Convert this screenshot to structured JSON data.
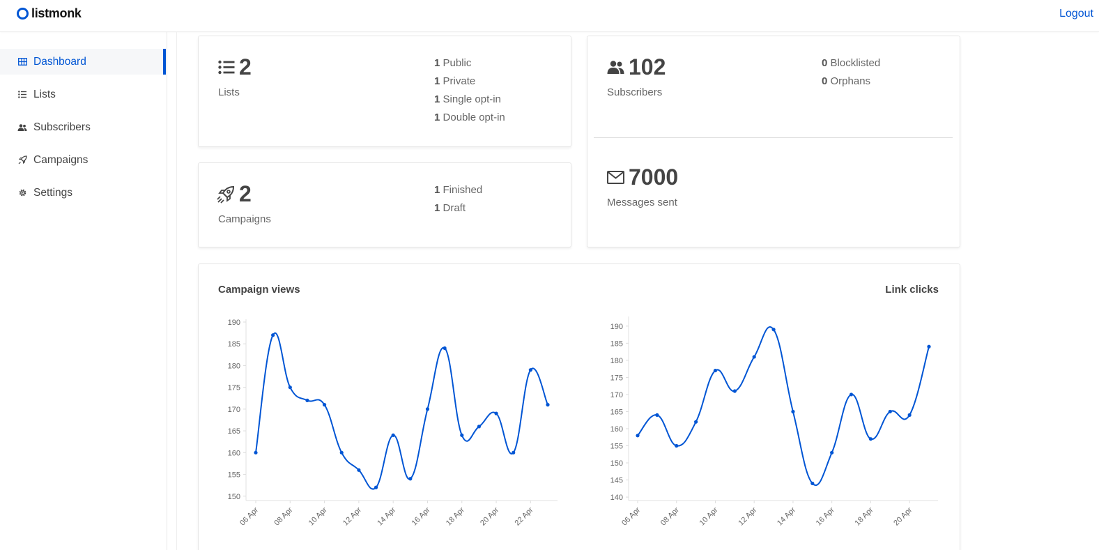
{
  "app": {
    "name": "listmonk",
    "logout_label": "Logout"
  },
  "sidebar": {
    "items": [
      {
        "label": "Dashboard",
        "icon": "dashboard-icon",
        "active": true
      },
      {
        "label": "Lists",
        "icon": "list-icon",
        "active": false
      },
      {
        "label": "Subscribers",
        "icon": "users-icon",
        "active": false
      },
      {
        "label": "Campaigns",
        "icon": "rocket-icon",
        "active": false
      },
      {
        "label": "Settings",
        "icon": "gear-icon",
        "active": false
      }
    ]
  },
  "cards": {
    "lists": {
      "count": "2",
      "label": "Lists",
      "stats": [
        {
          "value": "1",
          "label": "Public"
        },
        {
          "value": "1",
          "label": "Private"
        },
        {
          "value": "1",
          "label": "Single opt-in"
        },
        {
          "value": "1",
          "label": "Double opt-in"
        }
      ]
    },
    "campaigns": {
      "count": "2",
      "label": "Campaigns",
      "stats": [
        {
          "value": "1",
          "label": "Finished"
        },
        {
          "value": "1",
          "label": "Draft"
        }
      ]
    },
    "subscribers": {
      "count": "102",
      "label": "Subscribers",
      "stats": [
        {
          "value": "0",
          "label": "Blocklisted"
        },
        {
          "value": "0",
          "label": "Orphans"
        }
      ]
    },
    "messages": {
      "count": "7000",
      "label": "Messages sent"
    }
  },
  "colors": {
    "accent": "#0055d4",
    "line": "#0055d4"
  },
  "chart_data": [
    {
      "type": "line",
      "title": "Campaign views",
      "x": [
        "06 Apr",
        "07 Apr",
        "08 Apr",
        "09 Apr",
        "10 Apr",
        "11 Apr",
        "12 Apr",
        "13 Apr",
        "14 Apr",
        "15 Apr",
        "16 Apr",
        "17 Apr",
        "18 Apr",
        "19 Apr",
        "20 Apr",
        "21 Apr",
        "22 Apr",
        "23 Apr"
      ],
      "xticks": [
        "06 Apr",
        "08 Apr",
        "10 Apr",
        "12 Apr",
        "14 Apr",
        "16 Apr",
        "18 Apr",
        "20 Apr",
        "22 Apr"
      ],
      "values": [
        160,
        187,
        175,
        172,
        171,
        160,
        156,
        152,
        164,
        154,
        170,
        184,
        164,
        166,
        169,
        160,
        179,
        171
      ],
      "ylim": [
        149,
        190
      ],
      "yticks": [
        150,
        155,
        160,
        165,
        170,
        175,
        180,
        185,
        190
      ],
      "grid": false
    },
    {
      "type": "line",
      "title": "Link clicks",
      "x": [
        "06 Apr",
        "07 Apr",
        "08 Apr",
        "09 Apr",
        "10 Apr",
        "11 Apr",
        "12 Apr",
        "13 Apr",
        "14 Apr",
        "15 Apr",
        "16 Apr",
        "17 Apr",
        "18 Apr",
        "19 Apr",
        "20 Apr",
        "21 Apr"
      ],
      "xticks": [
        "06 Apr",
        "08 Apr",
        "10 Apr",
        "12 Apr",
        "14 Apr",
        "16 Apr",
        "18 Apr",
        "20 Apr"
      ],
      "values": [
        158,
        164,
        155,
        162,
        177,
        171,
        181,
        189,
        165,
        144,
        153,
        170,
        157,
        165,
        164,
        184
      ],
      "ylim": [
        139,
        192
      ],
      "yticks": [
        140,
        145,
        150,
        155,
        160,
        165,
        170,
        175,
        180,
        185,
        190
      ],
      "grid": false
    }
  ]
}
